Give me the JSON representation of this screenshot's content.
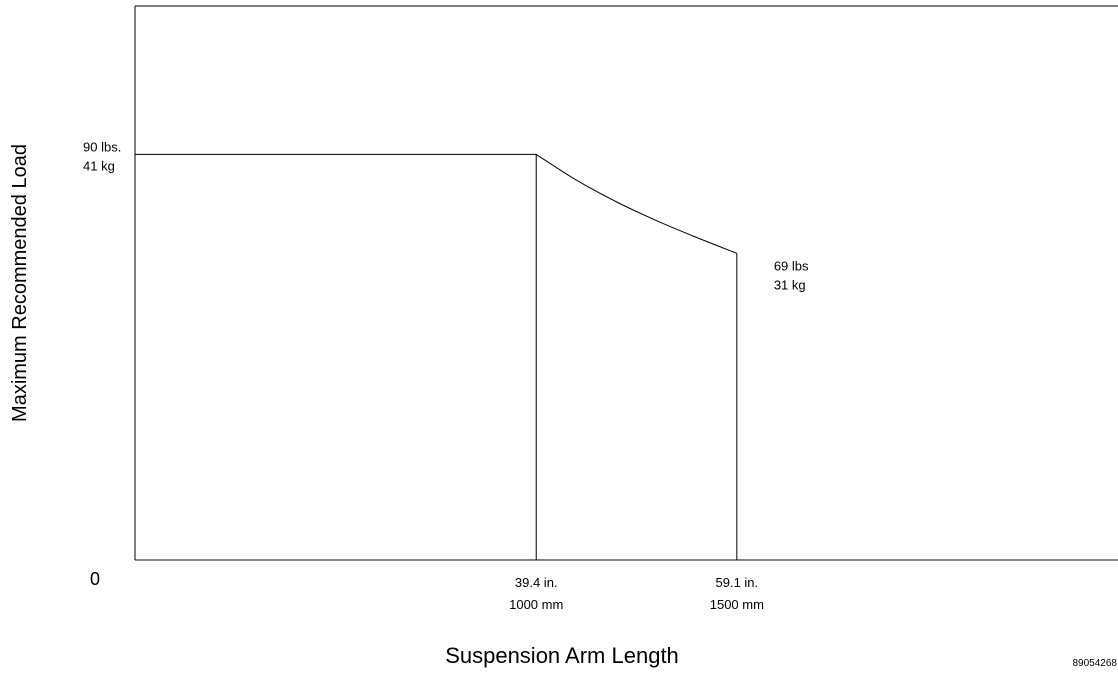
{
  "chart_data": {
    "type": "line",
    "xlabel": "Suspension Arm Length",
    "ylabel": "Maximum Recommended Load",
    "x_unit": "mm",
    "y_unit": "kg",
    "xlim": [
      0,
      2450
    ],
    "ylim": [
      0,
      56
    ],
    "series": [
      {
        "points": [
          {
            "x": 0,
            "y": 41
          },
          {
            "x": 1000,
            "y": 41
          },
          {
            "x": 1100,
            "y": 38.4
          },
          {
            "x": 1200,
            "y": 36.2
          },
          {
            "x": 1300,
            "y": 34.3
          },
          {
            "x": 1400,
            "y": 32.6
          },
          {
            "x": 1500,
            "y": 31
          }
        ]
      }
    ],
    "x_ticks": [
      {
        "x": 1000,
        "line1": "39.4 in.",
        "line2": "1000 mm"
      },
      {
        "x": 1500,
        "line1": "59.1 in.",
        "line2": "1500 mm"
      }
    ],
    "y_origin_label": "0",
    "annotations": [
      {
        "x": 0,
        "y": 41,
        "line1": "90 lbs.",
        "line2": "41 kg"
      },
      {
        "x": 1500,
        "y": 31,
        "line1": "69 lbs",
        "line2": "31 kg"
      }
    ],
    "grid": false,
    "legend": "none"
  },
  "figure_id": "89054268"
}
